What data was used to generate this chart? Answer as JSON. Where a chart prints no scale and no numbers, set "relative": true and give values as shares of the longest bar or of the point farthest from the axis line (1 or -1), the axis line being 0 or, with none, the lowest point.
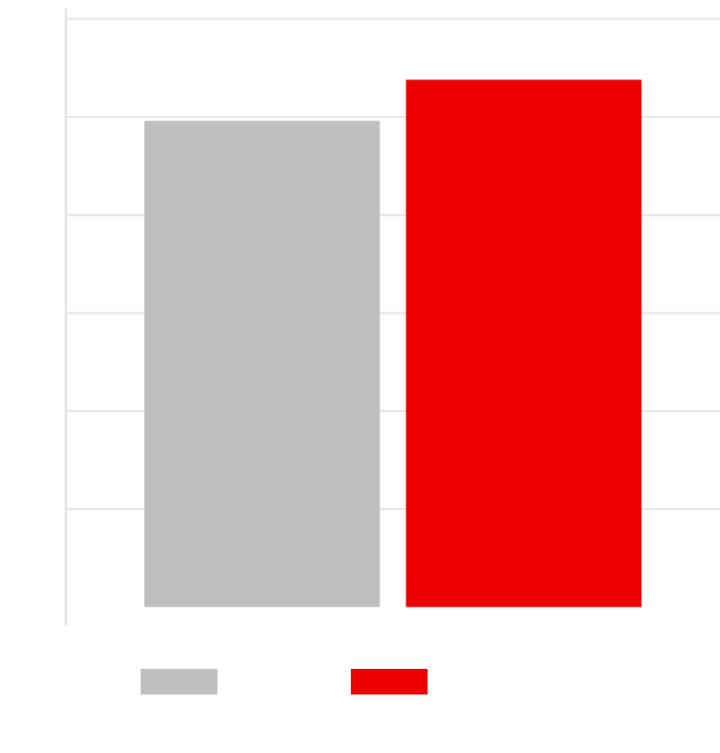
{
  "chart_data": {
    "type": "bar",
    "relative": true,
    "categories": [
      null,
      null
    ],
    "values": [
      0.922,
      1
    ],
    "colors": [
      "#bfbfbf",
      "#ee0000"
    ],
    "grid": "y"
  }
}
